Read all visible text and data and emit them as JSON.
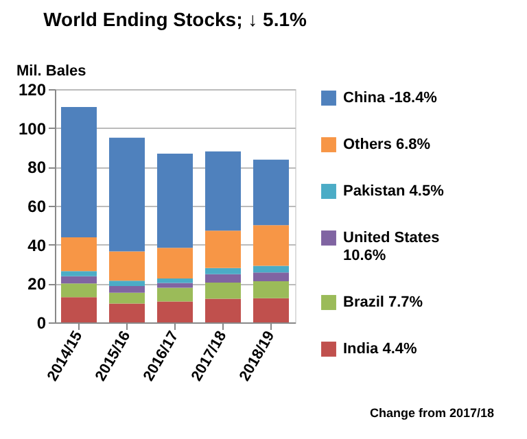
{
  "chart_data": {
    "type": "bar",
    "stacked": true,
    "title": "World Ending Stocks; ↓ 5.1%",
    "ylabel": "Mil. Bales",
    "categories": [
      "2014/15",
      "2015/16",
      "2016/17",
      "2017/18",
      "2018/19"
    ],
    "series": [
      {
        "name": "India 4.4%",
        "color": "#c0504d",
        "values": [
          13,
          9.7,
          10.8,
          12.2,
          12.4
        ]
      },
      {
        "name": "Brazil 7.7%",
        "color": "#9bbb59",
        "values": [
          7,
          5.6,
          7,
          8.3,
          8.8
        ]
      },
      {
        "name": "United States 10.6%",
        "color": "#8064a2",
        "values": [
          3.7,
          3.4,
          2.5,
          4.3,
          4.5
        ]
      },
      {
        "name": "Pakistan 4.5%",
        "color": "#4bacc6",
        "values": [
          2.7,
          2.7,
          2.3,
          3.2,
          3.4
        ]
      },
      {
        "name": "Others 6.8%",
        "color": "#f79646",
        "values": [
          17.4,
          15.1,
          15.8,
          19.2,
          20.9
        ]
      },
      {
        "name": "China -18.4%",
        "color": "#4f81bd",
        "values": [
          67,
          58.5,
          48.4,
          40.8,
          33.7
        ]
      }
    ],
    "ylim": [
      0,
      120
    ],
    "yticks": [
      0,
      20,
      40,
      60,
      80,
      100,
      120
    ],
    "grid": "y",
    "legend": "right",
    "annotations": [
      "Change from 2017/18"
    ]
  }
}
